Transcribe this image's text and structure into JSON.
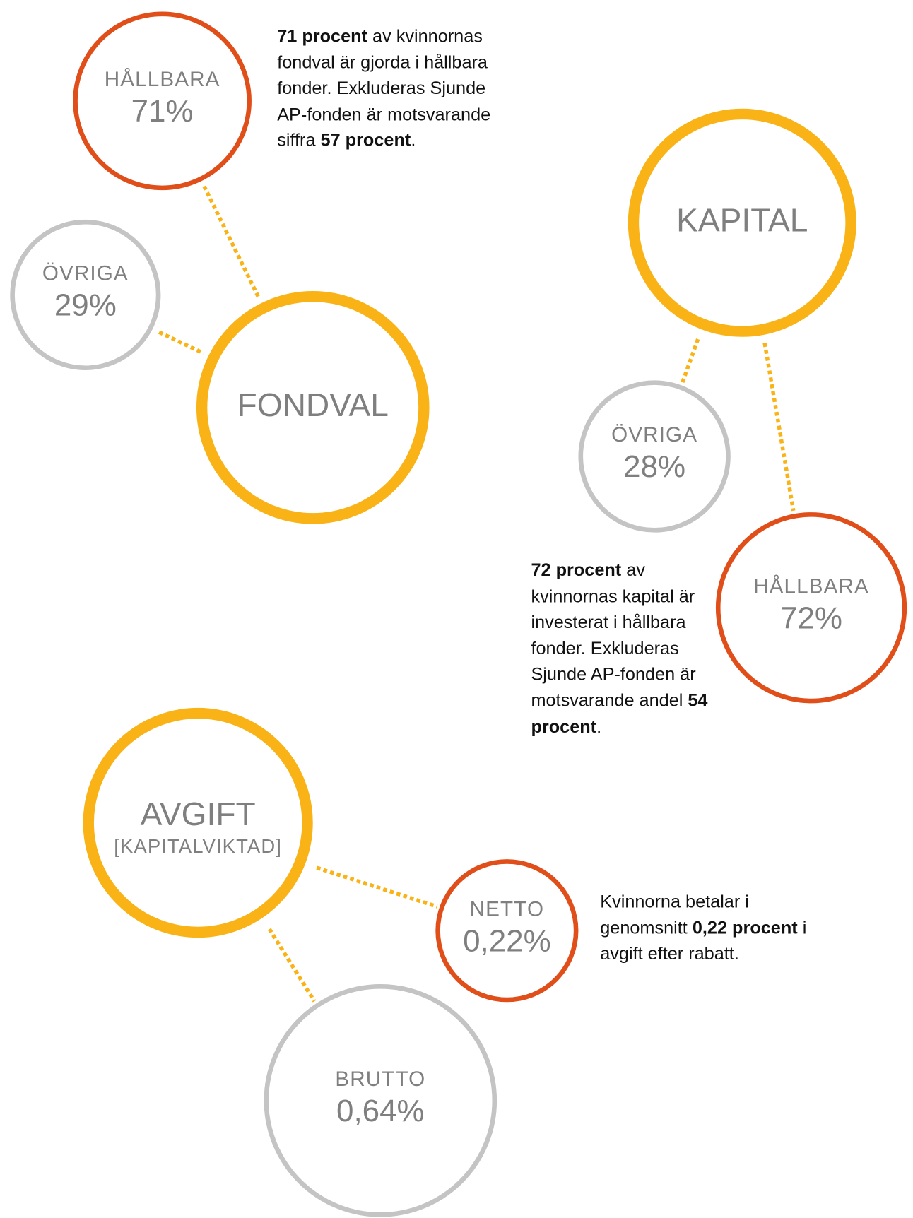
{
  "groups": [
    {
      "title": "FONDVAL",
      "nodes": [
        {
          "label": "HÅLLBARA",
          "value": "71%"
        },
        {
          "label": "ÖVRIGA",
          "value": "29%"
        }
      ],
      "note": [
        {
          "bold": "71 procent"
        },
        {
          "text": " av kvinnornas fondval är gjorda i hållbara fonder. Exkluderas Sjunde AP-fonden är motsvarande siffra "
        },
        {
          "bold": "57 procent"
        },
        {
          "text": "."
        }
      ]
    },
    {
      "title": "KAPITAL",
      "nodes": [
        {
          "label": "ÖVRIGA",
          "value": "28%"
        },
        {
          "label": "HÅLLBARA",
          "value": "72%"
        }
      ],
      "note": [
        {
          "bold": "72 procent"
        },
        {
          "text": " av kvinnornas kapital är investerat i hållbara fonder. Exkluderas Sjunde AP-fonden är motsvarande andel "
        },
        {
          "bold": "54 procent"
        },
        {
          "text": "."
        }
      ]
    },
    {
      "title": "AVGIFT",
      "subtitle": "[KAPITALVIKTAD]",
      "nodes": [
        {
          "label": "NETTO",
          "value": "0,22%"
        },
        {
          "label": "BRUTTO",
          "value": "0,64%"
        }
      ],
      "note": [
        {
          "text": "Kvinnorna betalar i genomsnitt "
        },
        {
          "bold": "0,22 procent"
        },
        {
          "text": " i avgift efter rabatt."
        }
      ]
    }
  ]
}
